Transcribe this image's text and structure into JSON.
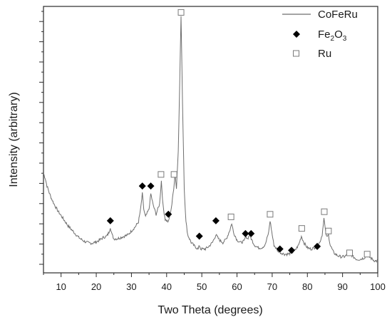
{
  "chart_data": {
    "type": "line",
    "xlabel": "Two Theta (degrees)",
    "ylabel": "Intensity (arbitrary)",
    "xlim": [
      5,
      100
    ],
    "ylim": [
      0,
      100
    ],
    "x_ticks": [
      10,
      20,
      30,
      40,
      50,
      60,
      70,
      80,
      90,
      100
    ],
    "y_tick_labels": false,
    "legend_position": "top-right",
    "colors": {
      "line": "#6e6e6e",
      "fe2o3": "#000000",
      "ru": "#7a7a7a"
    },
    "legend": [
      {
        "name": "CoFeRu",
        "marker": "line"
      },
      {
        "name": "Fe2O3",
        "base": "Fe",
        "sub1": "2",
        "mid": "O",
        "sub2": "3",
        "marker": "diamond"
      },
      {
        "name": "Ru",
        "marker": "square"
      }
    ],
    "series": [
      {
        "name": "CoFeRu",
        "points": [
          [
            5,
            36
          ],
          [
            5.5,
            34
          ],
          [
            6,
            31
          ],
          [
            7,
            27
          ],
          [
            8,
            24
          ],
          [
            9,
            21.5
          ],
          [
            10,
            19.5
          ],
          [
            11,
            17.5
          ],
          [
            12,
            15.5
          ],
          [
            13,
            14
          ],
          [
            14,
            12.5
          ],
          [
            15,
            11
          ],
          [
            16,
            10
          ],
          [
            17,
            9.2
          ],
          [
            18,
            8.8
          ],
          [
            19,
            8.8
          ],
          [
            20,
            9.3
          ],
          [
            21,
            10
          ],
          [
            22,
            11
          ],
          [
            23,
            11.5
          ],
          [
            23.6,
            13
          ],
          [
            24,
            15
          ],
          [
            24.5,
            12
          ],
          [
            25,
            10.5
          ],
          [
            26,
            10.5
          ],
          [
            27,
            11
          ],
          [
            28,
            11.5
          ],
          [
            29,
            12
          ],
          [
            30,
            13.5
          ],
          [
            31,
            15
          ],
          [
            32,
            17
          ],
          [
            32.6,
            22
          ],
          [
            33.1,
            28
          ],
          [
            33.5,
            22
          ],
          [
            34,
            19
          ],
          [
            35,
            22
          ],
          [
            35.5,
            28
          ],
          [
            36.1,
            24
          ],
          [
            37,
            20
          ],
          [
            38,
            24
          ],
          [
            38.5,
            33
          ],
          [
            39,
            23
          ],
          [
            39.6,
            18
          ],
          [
            40.5,
            17
          ],
          [
            41,
            20
          ],
          [
            41.5,
            24
          ],
          [
            42,
            30
          ],
          [
            42.4,
            36
          ],
          [
            42.8,
            30
          ],
          [
            43.3,
            45
          ],
          [
            43.7,
            70
          ],
          [
            44.1,
            97
          ],
          [
            44.5,
            65
          ],
          [
            45,
            30
          ],
          [
            45.5,
            17
          ],
          [
            46,
            12
          ],
          [
            47,
            9
          ],
          [
            48,
            7.5
          ],
          [
            49,
            6.5
          ],
          [
            49.3,
            8
          ],
          [
            49.7,
            6.5
          ],
          [
            51,
            6.5
          ],
          [
            52,
            7.5
          ],
          [
            53,
            9
          ],
          [
            54,
            12
          ],
          [
            55,
            10
          ],
          [
            56,
            9
          ],
          [
            57,
            10.5
          ],
          [
            58,
            14
          ],
          [
            58.5,
            16.5
          ],
          [
            59,
            13
          ],
          [
            60,
            10
          ],
          [
            61,
            9
          ],
          [
            62,
            9.5
          ],
          [
            62.5,
            11.5
          ],
          [
            63,
            10.5
          ],
          [
            63.6,
            12
          ],
          [
            64.2,
            10
          ],
          [
            65,
            8
          ],
          [
            66,
            7
          ],
          [
            67,
            7
          ],
          [
            68,
            8
          ],
          [
            69,
            13
          ],
          [
            69.4,
            17.5
          ],
          [
            69.9,
            13
          ],
          [
            70.5,
            8
          ],
          [
            71.5,
            6
          ],
          [
            72.5,
            5
          ],
          [
            73.5,
            4.5
          ],
          [
            74.5,
            4.5
          ],
          [
            75.5,
            5
          ],
          [
            76.5,
            6
          ],
          [
            77.5,
            8
          ],
          [
            78.3,
            11.5
          ],
          [
            79,
            9
          ],
          [
            80,
            7
          ],
          [
            81,
            6.5
          ],
          [
            82,
            7
          ],
          [
            82.8,
            8
          ],
          [
            83.5,
            9
          ],
          [
            84.2,
            12
          ],
          [
            84.7,
            18.5
          ],
          [
            85.2,
            13
          ],
          [
            85.6,
            11
          ],
          [
            86,
            12
          ],
          [
            86.5,
            8
          ],
          [
            87.5,
            5
          ],
          [
            88.5,
            4
          ],
          [
            89.5,
            3.5
          ],
          [
            90.5,
            3.5
          ],
          [
            91.5,
            4.5
          ],
          [
            92,
            5
          ],
          [
            93,
            3.5
          ],
          [
            94,
            2.5
          ],
          [
            95,
            2.5
          ],
          [
            96,
            3
          ],
          [
            97,
            4
          ],
          [
            98,
            3
          ],
          [
            99,
            2
          ],
          [
            100,
            1.8
          ]
        ]
      },
      {
        "name": "Fe2O3",
        "marker": "diamond",
        "points": [
          [
            24,
            17.5
          ],
          [
            33.1,
            31
          ],
          [
            35.5,
            31
          ],
          [
            40.5,
            20
          ],
          [
            49.3,
            11.5
          ],
          [
            54,
            17.5
          ],
          [
            62.4,
            12.5
          ],
          [
            64,
            12.5
          ],
          [
            72.2,
            6.5
          ],
          [
            75.5,
            6
          ],
          [
            82.8,
            7.5
          ]
        ]
      },
      {
        "name": "Ru",
        "marker": "square",
        "points": [
          [
            38.4,
            35.5
          ],
          [
            42.1,
            35.5
          ],
          [
            44.1,
            98.5
          ],
          [
            58.3,
            19
          ],
          [
            69.4,
            20
          ],
          [
            78.4,
            14.5
          ],
          [
            84.8,
            21
          ],
          [
            86,
            13.5
          ],
          [
            92,
            5
          ],
          [
            97,
            4.5
          ]
        ]
      }
    ]
  }
}
